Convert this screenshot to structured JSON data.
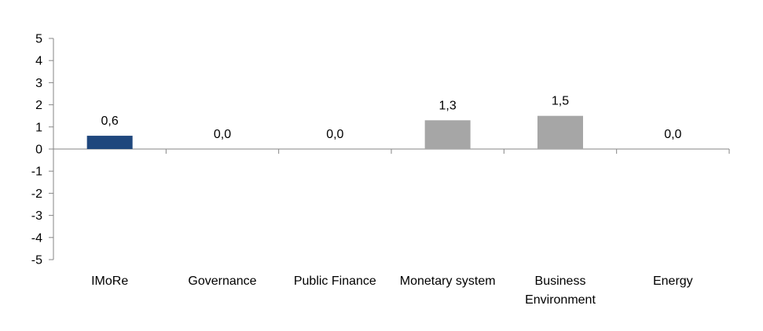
{
  "chart_data": {
    "type": "bar",
    "categories": [
      [
        "IMoRe"
      ],
      [
        "Governance"
      ],
      [
        "Public Finance"
      ],
      [
        "Monetary system"
      ],
      [
        "Business",
        "Environment"
      ],
      [
        "Energy"
      ]
    ],
    "values": [
      0.6,
      0.0,
      0.0,
      1.3,
      1.5,
      0.0
    ],
    "data_labels": [
      "0,6",
      "0,0",
      "0,0",
      "1,3",
      "1,5",
      "0,0"
    ],
    "bar_colors": [
      "#1F477D",
      "#A6A6A6",
      "#A6A6A6",
      "#A6A6A6",
      "#A6A6A6",
      "#A6A6A6"
    ],
    "ylim": [
      -5,
      5
    ],
    "yticks": [
      5,
      4,
      3,
      2,
      1,
      0,
      -1,
      -2,
      -3,
      -4,
      -5
    ],
    "ytick_labels": [
      "5",
      "4",
      "3",
      "2",
      "1",
      "0",
      "-1",
      "-2",
      "-3",
      "-4",
      "-5"
    ],
    "title": "",
    "xlabel": "",
    "ylabel": "",
    "grid": false,
    "legend": false,
    "axis_color": "#868686"
  }
}
